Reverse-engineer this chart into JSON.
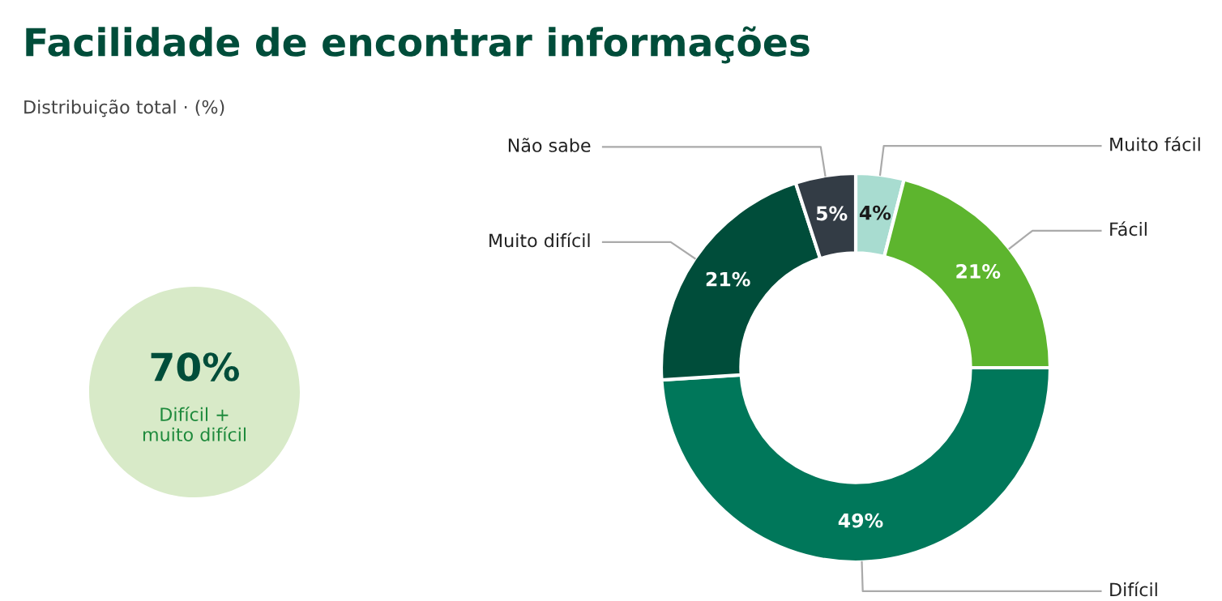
{
  "chart_data": {
    "type": "donut",
    "title": "Facilidade de encontrar informações",
    "subtitle": "Distribuição total · (%)",
    "categories": [
      "Muito fácil",
      "Fácil",
      "Difícil",
      "Muito difícil",
      "Não sabe"
    ],
    "values": [
      4,
      21,
      49,
      21,
      5
    ],
    "colors": [
      "#a8dcd0",
      "#5db52e",
      "#00775a",
      "#004d3a",
      "#333c45"
    ],
    "value_labels": [
      "4%",
      "21%",
      "49%",
      "21%",
      "5%"
    ],
    "annotations": [
      "70%",
      "Difícil +\nmuito difícil"
    ],
    "legend": false
  }
}
